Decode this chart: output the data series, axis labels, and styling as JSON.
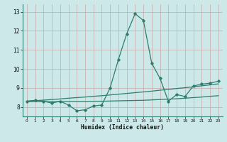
{
  "x": [
    0,
    1,
    2,
    3,
    4,
    5,
    6,
    7,
    8,
    9,
    10,
    11,
    12,
    13,
    14,
    15,
    16,
    17,
    18,
    19,
    20,
    21,
    22,
    23
  ],
  "y_main": [
    8.3,
    8.35,
    8.3,
    8.2,
    8.3,
    8.1,
    7.8,
    7.85,
    8.05,
    8.1,
    9.0,
    10.5,
    11.85,
    12.9,
    12.55,
    10.3,
    9.5,
    8.3,
    8.65,
    8.55,
    9.1,
    9.2,
    9.25,
    9.35
  ],
  "y_upper": [
    8.3,
    8.33,
    8.36,
    8.39,
    8.42,
    8.46,
    8.49,
    8.52,
    8.56,
    8.59,
    8.63,
    8.67,
    8.71,
    8.75,
    8.79,
    8.83,
    8.88,
    8.92,
    8.97,
    9.01,
    9.06,
    9.11,
    9.16,
    9.21
  ],
  "y_lower": [
    8.28,
    8.28,
    8.28,
    8.28,
    8.28,
    8.29,
    8.29,
    8.29,
    8.3,
    8.3,
    8.31,
    8.32,
    8.33,
    8.34,
    8.35,
    8.37,
    8.39,
    8.41,
    8.43,
    8.46,
    8.49,
    8.52,
    8.56,
    8.59
  ],
  "line_color": "#2e7d6e",
  "bg_color": "#cce8e8",
  "grid_color": "#b8d4d4",
  "xlabel": "Humidex (Indice chaleur)",
  "ylim": [
    7.5,
    13.4
  ],
  "xlim": [
    -0.5,
    23.5
  ],
  "yticks": [
    8,
    9,
    10,
    11,
    12,
    13
  ],
  "xticks": [
    0,
    1,
    2,
    3,
    4,
    5,
    6,
    7,
    8,
    9,
    10,
    11,
    12,
    13,
    14,
    15,
    16,
    17,
    18,
    19,
    20,
    21,
    22,
    23
  ]
}
